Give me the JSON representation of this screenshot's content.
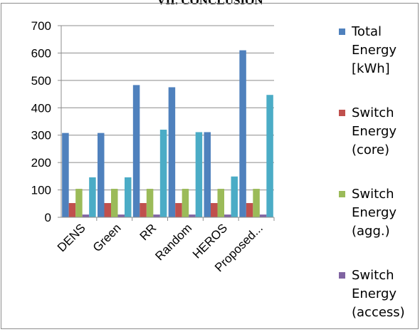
{
  "heading": "VII. CONCLUSION",
  "chart_data": {
    "type": "bar",
    "title": "",
    "xlabel": "",
    "ylabel": "",
    "ylim": [
      0,
      700
    ],
    "yticks": [
      "0",
      "100",
      "200",
      "300",
      "400",
      "500",
      "600",
      "700"
    ],
    "categories": [
      "DENS",
      "Green",
      "RR",
      "Random",
      "HEROS",
      "Proposed..."
    ],
    "grid": true,
    "legend_position": "right",
    "series": [
      {
        "name": "Total Energy [kWh]",
        "name_lines": [
          "Total",
          "Energy",
          "[kWh]"
        ],
        "color": "#4F81BD",
        "values": [
          308,
          308,
          483,
          475,
          311,
          610
        ]
      },
      {
        "name": "Switch Energy (core)",
        "name_lines": [
          "Switch",
          "Energy",
          "(core)"
        ],
        "color": "#C0504D",
        "values": [
          52,
          52,
          52,
          52,
          52,
          52
        ]
      },
      {
        "name": "Switch Energy (agg.)",
        "name_lines": [
          "Switch",
          "Energy",
          "(agg.)"
        ],
        "color": "#9BBB59",
        "values": [
          104,
          104,
          104,
          104,
          104,
          104
        ]
      },
      {
        "name": "Switch Energy (access)",
        "name_lines": [
          "Switch",
          "Energy",
          "(access)"
        ],
        "color": "#8064A2",
        "values": [
          10,
          10,
          10,
          10,
          10,
          10
        ]
      },
      {
        "name": "",
        "name_lines": [],
        "color": "#4BACC6",
        "values": [
          146,
          146,
          320,
          311,
          149,
          447
        ]
      }
    ]
  }
}
